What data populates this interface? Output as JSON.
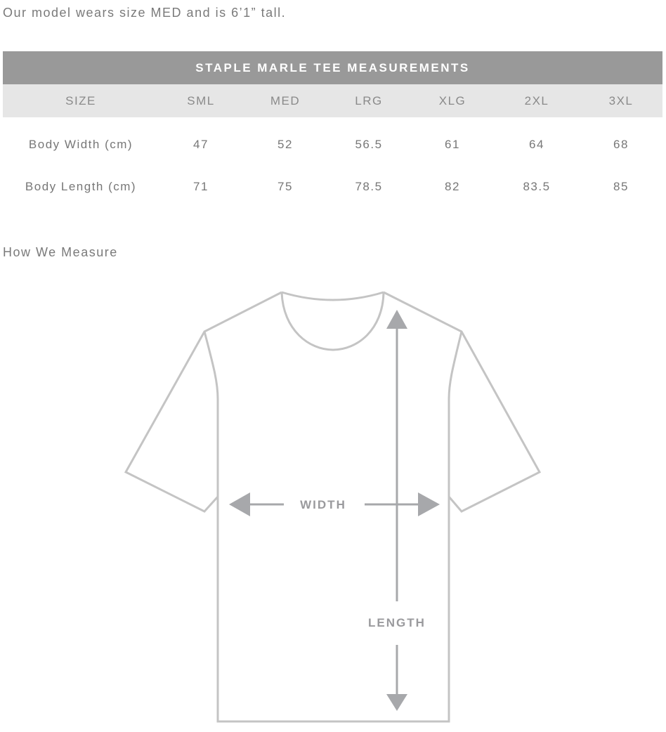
{
  "intro": "Our model wears size MED and is 6’1” tall.",
  "table": {
    "title": "STAPLE MARLE TEE MEASUREMENTS",
    "headers": [
      "SIZE",
      "SML",
      "MED",
      "LRG",
      "XLG",
      "2XL",
      "3XL"
    ],
    "rows": [
      [
        "Body Width (cm)",
        "47",
        "52",
        "56.5",
        "61",
        "64",
        "68"
      ],
      [
        "Body Length (cm)",
        "71",
        "75",
        "78.5",
        "82",
        "83.5",
        "85"
      ]
    ]
  },
  "how_we_measure": "How We Measure",
  "diagram": {
    "width_label": "WIDTH",
    "length_label": "LENGTH",
    "outline_color": "#c4c4c4",
    "arrow_color": "#a7a8ab"
  }
}
